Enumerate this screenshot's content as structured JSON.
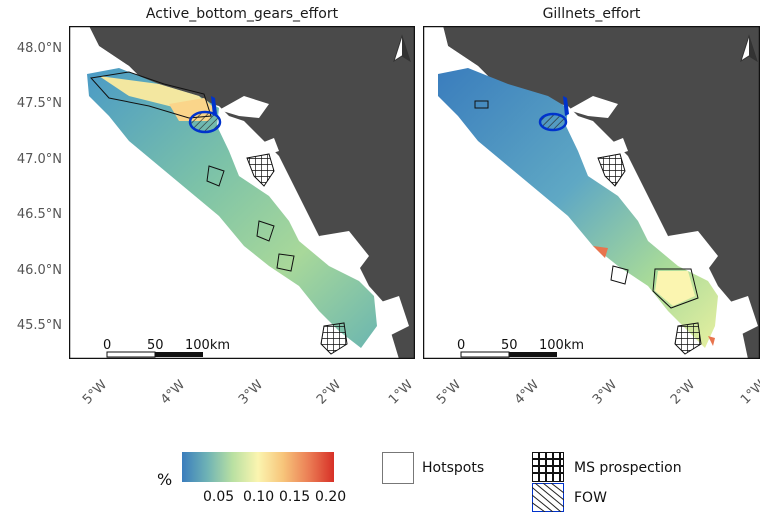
{
  "panels": [
    {
      "title": "Active_bottom_gears_effort"
    },
    {
      "title": "Gillnets_effort"
    }
  ],
  "lat_labels": [
    "48.0°N",
    "47.5°N",
    "47.0°N",
    "46.5°N",
    "46.0°N",
    "45.5°N"
  ],
  "lon_labels": [
    "5°W",
    "4°W",
    "3°W",
    "2°W",
    "1°W"
  ],
  "scalebar": {
    "zero": "0",
    "mid": "50",
    "end": "100km"
  },
  "legend": {
    "colorbar_title": "%",
    "ticks": [
      "0.05",
      "0.10",
      "0.15",
      "0.20"
    ],
    "hotspots_label": "Hotspots",
    "ms_label": "MS prospection",
    "fow_label": "FOW"
  },
  "colors": {
    "land": "#4a4a4a",
    "sea": "#ffffff",
    "low": "#3a7dbd",
    "mid": "#fbf5b0",
    "high": "#d73027",
    "fow_outline": "#0033cc"
  }
}
